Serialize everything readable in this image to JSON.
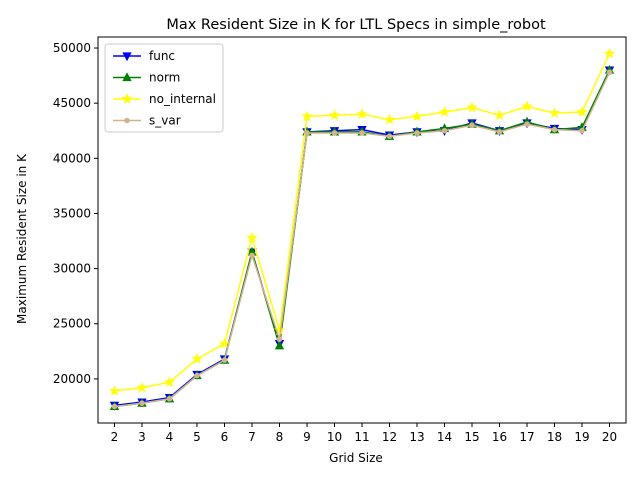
{
  "chart_data": {
    "type": "line",
    "title": "Max Resident Size in K for LTL Specs in simple_robot",
    "xlabel": "Grid Size",
    "ylabel": "Maximum Resident Size in K",
    "x": [
      2,
      3,
      4,
      5,
      6,
      7,
      8,
      9,
      10,
      11,
      12,
      13,
      14,
      15,
      16,
      17,
      18,
      19,
      20
    ],
    "xlim": [
      1.4,
      20.6
    ],
    "ylim": [
      16000,
      51000
    ],
    "yticks": [
      20000,
      25000,
      30000,
      35000,
      40000,
      45000,
      50000
    ],
    "grid": false,
    "legend_position": "top-left",
    "series": [
      {
        "name": "func",
        "color": "#0000ff",
        "marker": "triangle-down",
        "values": [
          17600,
          17900,
          18300,
          20400,
          21800,
          31500,
          23200,
          42400,
          42500,
          42600,
          42100,
          42400,
          42500,
          43200,
          42500,
          43200,
          42700,
          42600,
          48000
        ]
      },
      {
        "name": "norm",
        "color": "#008000",
        "marker": "triangle-up",
        "values": [
          17500,
          17800,
          18200,
          20300,
          21700,
          31500,
          23000,
          42400,
          42400,
          42400,
          42000,
          42400,
          42700,
          43100,
          42500,
          43300,
          42600,
          42800,
          48000
        ]
      },
      {
        "name": "no_internal",
        "color": "#ffff00",
        "marker": "star",
        "values": [
          18900,
          19200,
          19700,
          21800,
          23200,
          32800,
          24400,
          43800,
          43900,
          44000,
          43500,
          43800,
          44200,
          44600,
          43900,
          44700,
          44100,
          44200,
          49500
        ]
      },
      {
        "name": "s_var",
        "color": "#d2b48c",
        "marker": "circle",
        "values": [
          17500,
          17800,
          18200,
          20300,
          21700,
          31200,
          23600,
          42300,
          42300,
          42300,
          42000,
          42300,
          42500,
          43000,
          42400,
          43100,
          42600,
          42500,
          47800
        ]
      }
    ]
  }
}
